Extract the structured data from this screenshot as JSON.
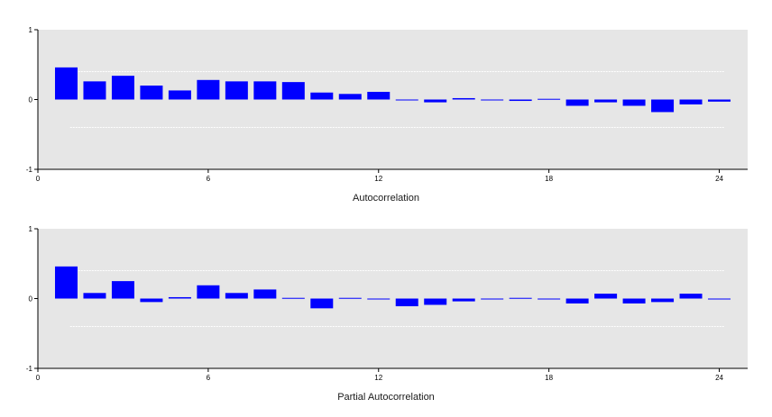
{
  "chart_data": [
    {
      "type": "bar",
      "title": "Autocorrelation",
      "x": [
        1,
        2,
        3,
        4,
        5,
        6,
        7,
        8,
        9,
        10,
        11,
        12,
        13,
        14,
        15,
        16,
        17,
        18,
        19,
        20,
        21,
        22,
        23,
        24
      ],
      "values": [
        0.46,
        0.26,
        0.34,
        0.2,
        0.13,
        0.28,
        0.26,
        0.26,
        0.25,
        0.1,
        0.08,
        0.11,
        -0.01,
        -0.04,
        0.02,
        -0.01,
        -0.02,
        0.01,
        -0.09,
        -0.04,
        -0.09,
        -0.18,
        -0.07,
        -0.03
      ],
      "xlim": [
        0,
        25
      ],
      "ylim": [
        -1,
        1
      ],
      "xticks": [
        "0",
        "6",
        "12",
        "18",
        "24"
      ],
      "xtick_values": [
        0,
        6,
        12,
        18,
        24
      ],
      "yticks": [
        "1",
        "0",
        "-1"
      ],
      "ytick_values": [
        1,
        0,
        -1
      ],
      "confidence_band": 0.4,
      "colors": {
        "bar": "#0000ff",
        "plot_bg": "#e6e6e6",
        "band": "#ffffff"
      }
    },
    {
      "type": "bar",
      "title": "Partial Autocorrelation",
      "x": [
        1,
        2,
        3,
        4,
        5,
        6,
        7,
        8,
        9,
        10,
        11,
        12,
        13,
        14,
        15,
        16,
        17,
        18,
        19,
        20,
        21,
        22,
        23,
        24
      ],
      "values": [
        0.46,
        0.08,
        0.25,
        -0.05,
        0.02,
        0.19,
        0.08,
        0.13,
        0.01,
        -0.14,
        0.01,
        -0.01,
        -0.11,
        -0.09,
        -0.04,
        -0.01,
        0.01,
        -0.01,
        -0.07,
        0.07,
        -0.07,
        -0.05,
        0.07,
        -0.01
      ],
      "xlim": [
        0,
        25
      ],
      "ylim": [
        -1,
        1
      ],
      "xticks": [
        "0",
        "6",
        "12",
        "18",
        "24"
      ],
      "xtick_values": [
        0,
        6,
        12,
        18,
        24
      ],
      "yticks": [
        "1",
        "0",
        "-1"
      ],
      "ytick_values": [
        1,
        0,
        -1
      ],
      "confidence_band": 0.4,
      "colors": {
        "bar": "#0000ff",
        "plot_bg": "#e6e6e6",
        "band": "#ffffff"
      }
    }
  ]
}
